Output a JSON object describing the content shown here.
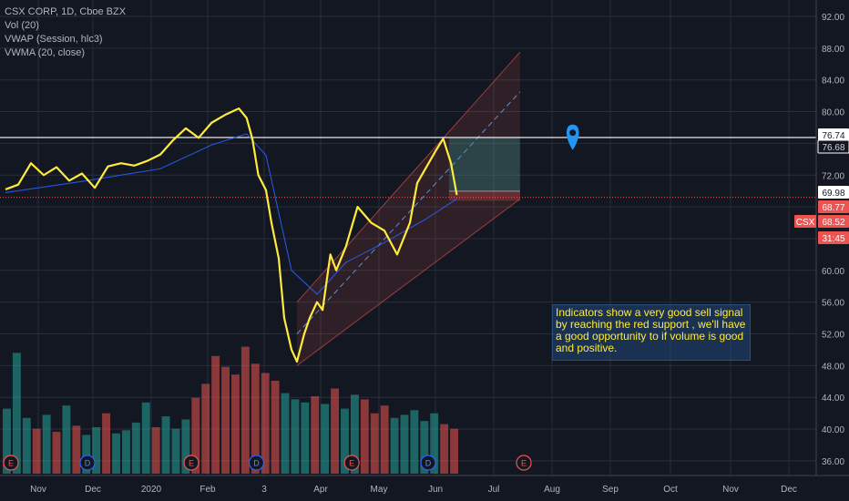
{
  "legend": {
    "title": "CSX CORP, 1D, Cboe BZX",
    "vol": "Vol (20)",
    "vwap": "VWAP (Session, hlc3)",
    "vwma": "VWMA (20, close)"
  },
  "note": {
    "lines": [
      "Indicators show a very good sell signal",
      "by reaching the red support , we'll have",
      "a good opportunity to if volume is good",
      "and positive."
    ]
  },
  "colors": {
    "background": "#131722",
    "grid": "#2a2e39",
    "price_line": "#ffeb3b",
    "vwma_line": "#2962ff",
    "channel": "#ef5350",
    "long_target": "#26a69a",
    "long_stop": "#ef5350",
    "marker": "#2196f3",
    "volume_up": "#26a69a",
    "volume_down": "#ef5350"
  },
  "chart_data": {
    "type": "line",
    "symbol": "CSX",
    "x_ticks": [
      "Nov",
      "Dec",
      "2020",
      "Feb",
      "3",
      "Apr",
      "May",
      "Jun",
      "Jul",
      "Aug",
      "Sep",
      "Oct",
      "Nov",
      "Dec"
    ],
    "y_ticks": [
      "92.00",
      "88.00",
      "84.00",
      "80.00",
      "76.00",
      "72.00",
      "68.00",
      "64.00",
      "60.00",
      "56.00",
      "52.00",
      "48.00",
      "44.00",
      "40.00",
      "36.00"
    ],
    "ylim": [
      34,
      94
    ],
    "price_series": {
      "dates": [
        "2019-10-14",
        "2019-10-21",
        "2019-10-28",
        "2019-11-04",
        "2019-11-11",
        "2019-11-18",
        "2019-11-25",
        "2019-12-02",
        "2019-12-09",
        "2019-12-16",
        "2019-12-23",
        "2019-12-30",
        "2020-01-06",
        "2020-01-13",
        "2020-01-20",
        "2020-01-27",
        "2020-02-03",
        "2020-02-10",
        "2020-02-17",
        "2020-02-21",
        "2020-02-24",
        "2020-02-27",
        "2020-03-02",
        "2020-03-05",
        "2020-03-09",
        "2020-03-12",
        "2020-03-16",
        "2020-03-19",
        "2020-03-23",
        "2020-03-26",
        "2020-03-30",
        "2020-04-02",
        "2020-04-06",
        "2020-04-09",
        "2020-04-14",
        "2020-04-20",
        "2020-04-27",
        "2020-05-04",
        "2020-05-11",
        "2020-05-18",
        "2020-05-22",
        "2020-05-27",
        "2020-06-01",
        "2020-06-05",
        "2020-06-09",
        "2020-06-12"
      ],
      "values": [
        70.2,
        70.8,
        73.5,
        72.0,
        73.0,
        71.3,
        72.2,
        70.4,
        73.1,
        73.5,
        73.2,
        73.8,
        74.6,
        76.4,
        77.9,
        76.7,
        78.6,
        79.6,
        80.4,
        79.2,
        76.5,
        72.0,
        70.1,
        66.0,
        61.5,
        54.0,
        50.0,
        48.5,
        52.0,
        54.0,
        56.0,
        55.0,
        62.0,
        60.0,
        63.0,
        68.0,
        66.0,
        65.0,
        62.0,
        66.0,
        71.0,
        73.0,
        75.0,
        76.6,
        73.5,
        69.5
      ]
    },
    "vwma_series": {
      "dates": [
        "2019-10-14",
        "2019-11-25",
        "2020-01-06",
        "2020-02-03",
        "2020-02-21",
        "2020-03-02",
        "2020-03-16",
        "2020-03-30",
        "2020-04-14",
        "2020-05-04",
        "2020-05-27",
        "2020-06-12"
      ],
      "values": [
        69.8,
        71.2,
        72.8,
        75.8,
        77.2,
        74.5,
        60.0,
        57.0,
        61.0,
        63.5,
        66.5,
        69.0
      ]
    },
    "volume_mln": [
      4.2,
      7.8,
      3.6,
      2.9,
      3.8,
      2.7,
      4.4,
      3.1,
      2.5,
      3.0,
      3.9,
      2.6,
      2.8,
      3.3,
      4.6,
      3.0,
      3.7,
      2.9,
      3.5,
      4.9,
      5.8,
      7.6,
      6.9,
      6.4,
      8.2,
      7.1,
      6.5,
      6.0,
      5.2,
      4.8,
      4.6,
      5.0,
      4.5,
      5.5,
      4.2,
      5.1,
      4.8,
      3.9,
      4.4,
      3.6,
      3.8,
      4.1,
      3.4,
      3.9,
      3.2,
      2.9
    ],
    "channel": {
      "lower": {
        "from": [
          "2020-03-19",
          48.0
        ],
        "to": [
          "2020-07-15",
          69.0
        ]
      },
      "upper": {
        "from": [
          "2020-03-19",
          56.0
        ],
        "to": [
          "2020-07-15",
          87.5
        ]
      },
      "midline": {
        "from": [
          "2020-03-19",
          52.0
        ],
        "to": [
          "2020-07-15",
          82.5
        ]
      }
    },
    "horizontal_line": 76.74,
    "red_support": 69.2,
    "position": {
      "entry": 69.98,
      "target": 76.74,
      "stop": 68.77,
      "start": "2020-06-08",
      "end": "2020-07-15"
    },
    "price_labels": [
      {
        "text": "76.74",
        "value": 76.74,
        "bg": "#ffffff",
        "fg": "#131722"
      },
      {
        "text": "76.68",
        "value": 76.68,
        "bg": "#131722",
        "fg": "#d1d4dc",
        "border": "#ffffff"
      },
      {
        "text": "69.98",
        "value": 69.98,
        "bg": "#ffffff",
        "fg": "#131722"
      },
      {
        "text": "68.77",
        "value": 68.77,
        "bg": "#ef5350",
        "fg": "#ffffff"
      },
      {
        "text": "68.52",
        "value": 68.52,
        "bg": "#ef5350",
        "fg": "#ffffff"
      },
      {
        "text": "31:45",
        "value": 66.2,
        "bg": "#ef5350",
        "fg": "#ffffff"
      }
    ],
    "symbol_tag": "CSX",
    "events": [
      {
        "type": "E",
        "date": "2019-10-17"
      },
      {
        "type": "D",
        "date": "2019-11-28"
      },
      {
        "type": "E",
        "date": "2020-01-23"
      },
      {
        "type": "D",
        "date": "2020-02-26"
      },
      {
        "type": "E",
        "date": "2020-04-17"
      },
      {
        "type": "D",
        "date": "2020-05-28"
      },
      {
        "type": "E",
        "date": "2020-07-17"
      }
    ],
    "marker": {
      "date": "2020-08-12",
      "value": 77.0
    }
  }
}
